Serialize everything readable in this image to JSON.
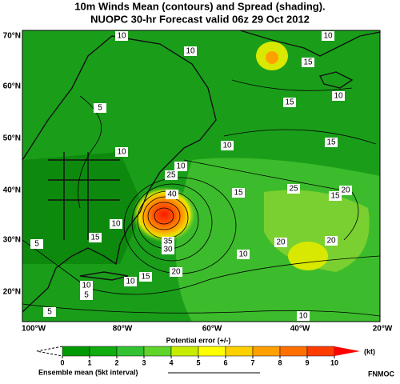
{
  "title": [
    "10m Winds Mean (contours) and Spread (shading).",
    "NUOPC 30-hr Forecast valid 06z 29 Oct 2012"
  ],
  "lat_labels": [
    "70°N",
    "60°N",
    "50°N",
    "40°N",
    "30°N",
    "20°N"
  ],
  "lon_labels": [
    "100°W",
    "80°W",
    "60°W",
    "40°W",
    "20°W"
  ],
  "contour_labels": [
    10,
    10,
    10,
    15,
    10,
    15,
    5,
    15,
    10,
    10,
    10,
    25,
    40,
    15,
    25,
    20,
    15,
    10,
    15,
    5,
    35,
    30,
    10,
    20,
    20,
    20,
    15,
    10,
    10,
    5,
    5,
    10
  ],
  "colorbar": {
    "label": "Potential error (+/-)",
    "unit": "(kt)",
    "ticks": [
      0,
      1,
      2,
      3,
      4,
      5,
      6,
      7,
      8,
      9,
      10
    ],
    "colors": [
      "#009a00",
      "#10ac10",
      "#33c233",
      "#5fd42a",
      "#c8ec00",
      "#ffff00",
      "#ffd000",
      "#ffa000",
      "#ff7000",
      "#ff3c00"
    ],
    "over_color": "#ff0000"
  },
  "legend_line": "Ensemble mean (5kt interval)",
  "credit": "FNMOC"
}
